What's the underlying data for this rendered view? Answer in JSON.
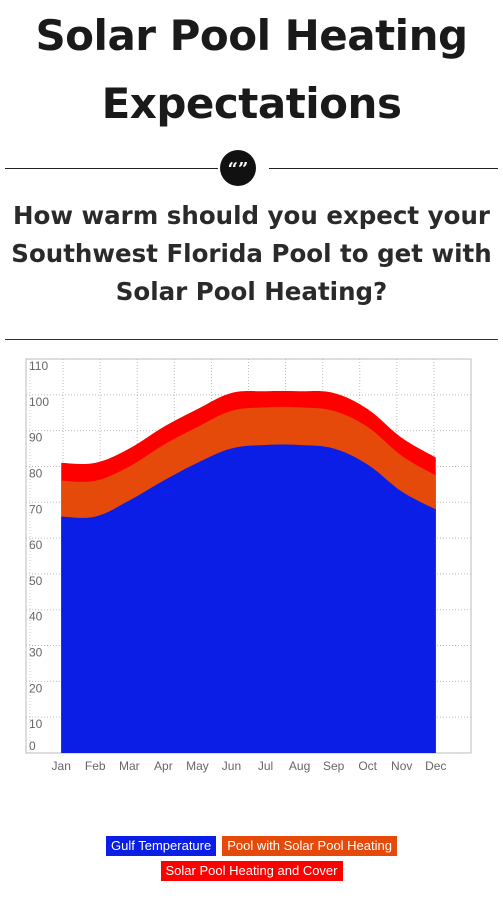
{
  "header": {
    "title_line1": "Solar Pool Heating",
    "title_line2": "Expectations",
    "quote_glyph": "“”",
    "subtitle_line1": "How warm should you expect your",
    "subtitle_line2": "Southwest Florida Pool to get with",
    "subtitle_line3": "Solar Pool Heating?"
  },
  "chart_data": {
    "type": "area",
    "categories": [
      "Jan",
      "Feb",
      "Mar",
      "Apr",
      "May",
      "Jun",
      "Jul",
      "Aug",
      "Sep",
      "Oct",
      "Nov",
      "Dec"
    ],
    "series": [
      {
        "name": "Solar Pool Heating and Cover",
        "color": "#ff0000",
        "values": [
          81,
          81,
          85,
          91,
          96,
          100.5,
          101,
          101,
          100.5,
          96,
          88,
          82.5
        ]
      },
      {
        "name": "Pool with Solar Pool Heating",
        "color": "#e64a0a",
        "values": [
          76,
          76,
          80,
          86,
          91,
          95.5,
          96.5,
          96.5,
          95.5,
          91,
          83,
          77.5
        ]
      },
      {
        "name": "Gulf Temperature",
        "color": "#0a1ee6",
        "values": [
          66,
          66,
          70.5,
          76,
          81,
          85,
          86,
          86,
          85,
          80.5,
          73,
          68
        ]
      }
    ],
    "yticks": [
      0,
      10,
      20,
      30,
      40,
      50,
      60,
      70,
      80,
      90,
      100,
      110
    ],
    "ylim": [
      0,
      110
    ],
    "grid": true
  },
  "legend": [
    {
      "label": "Gulf Temperature",
      "color": "#0a1ee6"
    },
    {
      "label": "Pool with Solar Pool Heating",
      "color": "#e64a0a"
    },
    {
      "label": "Solar Pool Heating and Cover",
      "color": "#ff0000"
    }
  ]
}
